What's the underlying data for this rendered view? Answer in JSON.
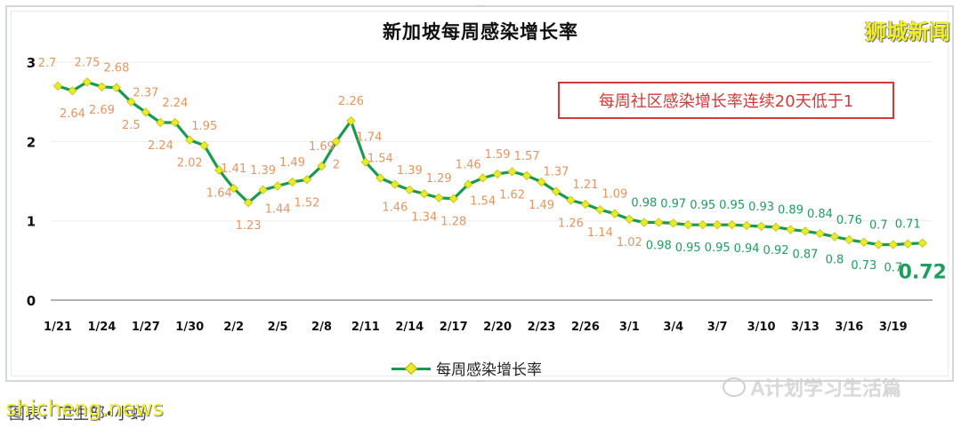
{
  "header": {
    "title": "新加坡每周感染增长率",
    "brand": "狮城新闻"
  },
  "callout": {
    "text": "每周社区感染增长率连续20天低于1",
    "color": "#d23a3a"
  },
  "legend": {
    "label": "每周感染增长率"
  },
  "footer": {
    "source": "图表：卫生部•小蚂",
    "watermark": "shicheng.news",
    "wechat_account": "A计划学习生活篇"
  },
  "colors": {
    "line": "#1a9a50",
    "marker": "#e8ea2e",
    "label_above_one": "#e8955f",
    "label_below_one": "#1f9d5c",
    "axis": "#999999",
    "grid": "#eeeeee"
  },
  "chart_data": {
    "type": "line",
    "title": "新加坡每周感染增长率",
    "xlabel": "",
    "ylabel": "",
    "ylim": [
      0,
      3
    ],
    "yticks": [
      0,
      1,
      2,
      3
    ],
    "grid": true,
    "legend_position": "bottom",
    "xtick_labels": [
      "1/21",
      "1/24",
      "1/27",
      "1/30",
      "2/2",
      "2/5",
      "2/8",
      "2/11",
      "2/14",
      "2/17",
      "2/20",
      "2/23",
      "2/26",
      "3/1",
      "3/4",
      "3/7",
      "3/10",
      "3/13",
      "3/16",
      "3/19"
    ],
    "x": [
      "1/21",
      "1/22",
      "1/23",
      "1/24",
      "1/25",
      "1/26",
      "1/27",
      "1/28",
      "1/29",
      "1/30",
      "1/31",
      "2/1",
      "2/2",
      "2/3",
      "2/4",
      "2/5",
      "2/6",
      "2/7",
      "2/8",
      "2/9",
      "2/10",
      "2/11",
      "2/12",
      "2/13",
      "2/14",
      "2/15",
      "2/16",
      "2/17",
      "2/18",
      "2/19",
      "2/20",
      "2/21",
      "2/22",
      "2/23",
      "2/24",
      "2/25",
      "2/26",
      "2/27",
      "2/28",
      "3/1",
      "3/2",
      "3/3",
      "3/4",
      "3/5",
      "3/6",
      "3/7",
      "3/8",
      "3/9",
      "3/10",
      "3/11",
      "3/12",
      "3/13",
      "3/14",
      "3/15",
      "3/16",
      "3/17",
      "3/18",
      "3/19",
      "3/20",
      "3/21"
    ],
    "series": [
      {
        "name": "每周感染增长率",
        "values": [
          2.7,
          2.64,
          2.75,
          2.69,
          2.68,
          2.5,
          2.37,
          2.24,
          2.24,
          2.02,
          1.95,
          1.64,
          1.41,
          1.23,
          1.39,
          1.44,
          1.49,
          1.52,
          1.69,
          2,
          2.26,
          1.74,
          1.54,
          1.46,
          1.39,
          1.34,
          1.29,
          1.28,
          1.46,
          1.54,
          1.59,
          1.62,
          1.57,
          1.49,
          1.37,
          1.26,
          1.21,
          1.14,
          1.09,
          1.02,
          0.98,
          0.98,
          0.97,
          0.95,
          0.95,
          0.95,
          0.95,
          0.94,
          0.93,
          0.92,
          0.89,
          0.87,
          0.84,
          0.8,
          0.76,
          0.73,
          0.7,
          0.7,
          0.71,
          0.72
        ]
      }
    ],
    "annotations": [
      {
        "text": "每周社区感染增长率连续20天低于1"
      },
      {
        "text": "0.72",
        "emphasis": "last point"
      }
    ]
  }
}
